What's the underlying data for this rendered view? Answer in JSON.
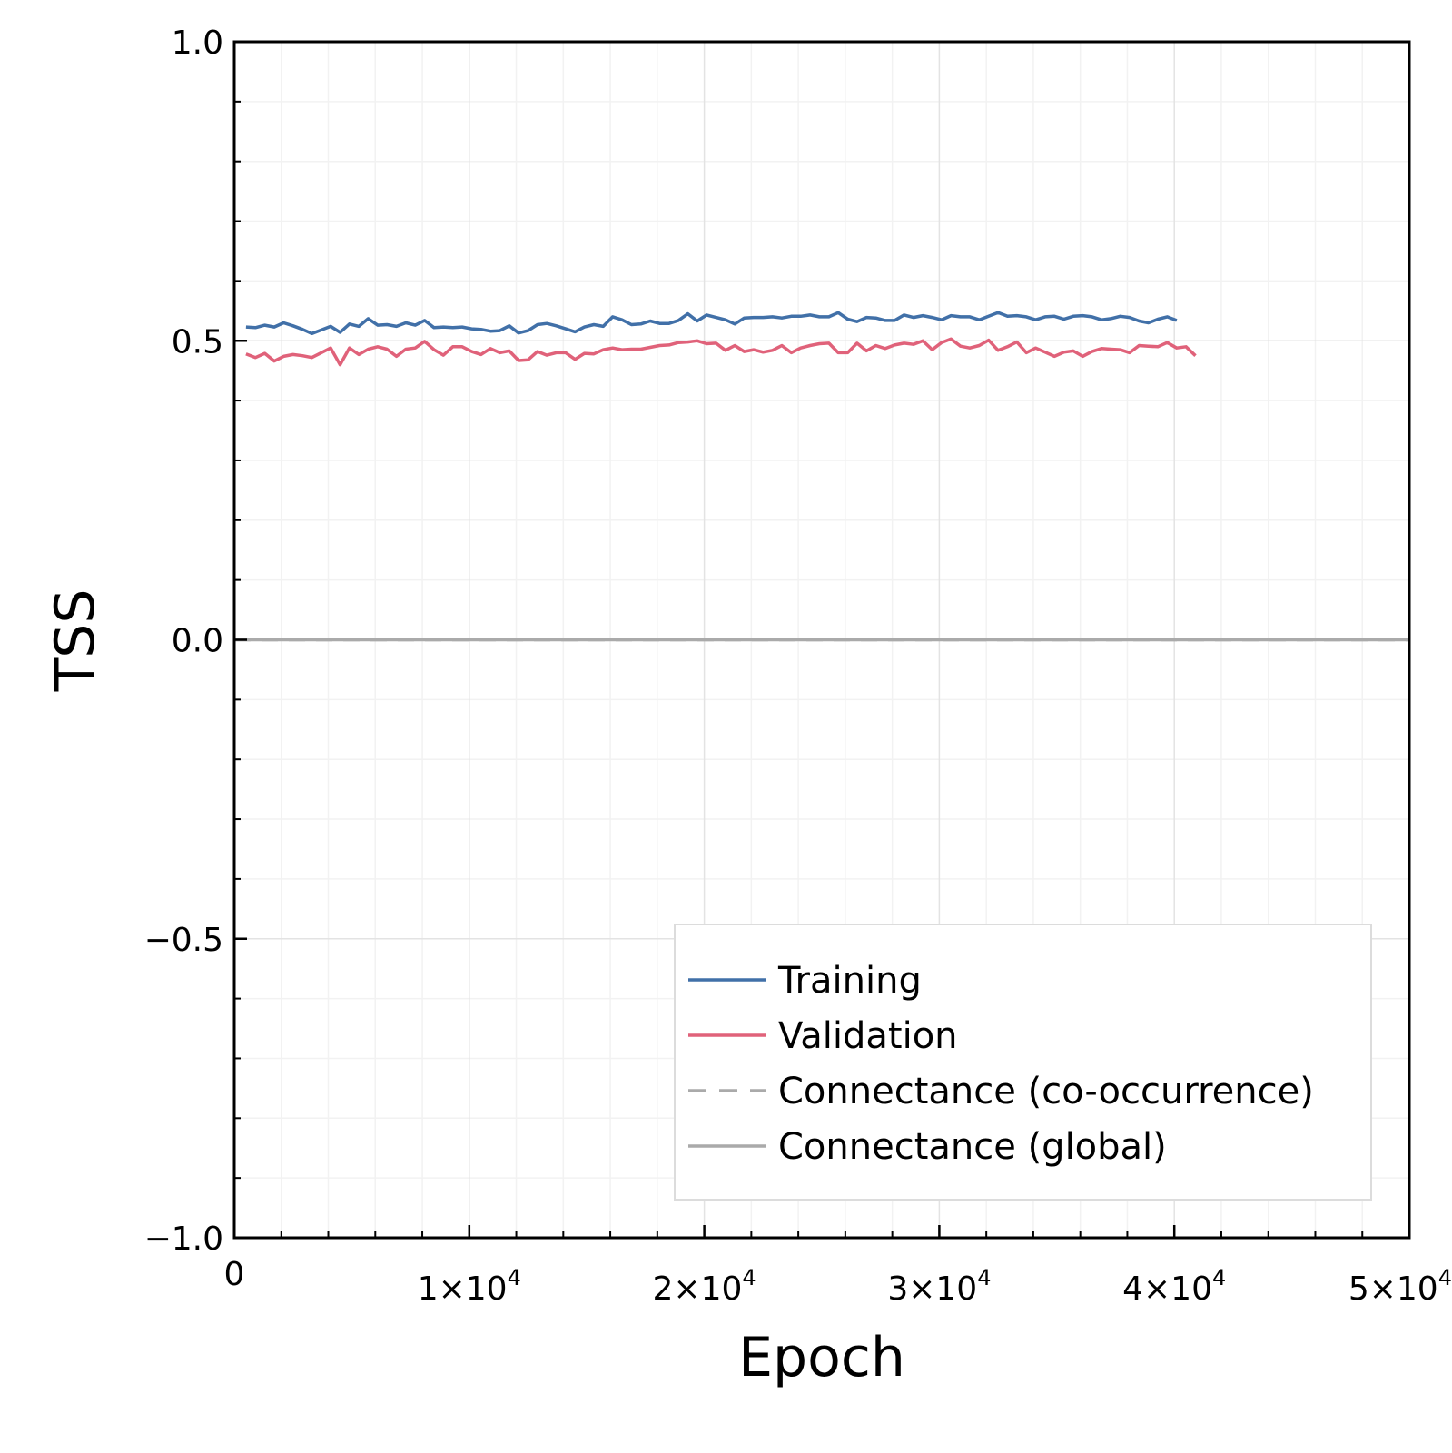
{
  "chart_data": {
    "type": "line",
    "xlabel": "Epoch",
    "ylabel": "TSS",
    "xlim": [
      0,
      50000
    ],
    "ylim": [
      -1.0,
      1.0
    ],
    "grid": true,
    "legend_position": "bottom-right",
    "y_ticks": [
      {
        "value": -1.0,
        "label": "−1.0"
      },
      {
        "value": -0.5,
        "label": "−0.5"
      },
      {
        "value": 0.0,
        "label": "0.0"
      },
      {
        "value": 0.5,
        "label": "0.5"
      },
      {
        "value": 1.0,
        "label": "1.0"
      }
    ],
    "x_ticks": [
      {
        "value": 0,
        "base": "0",
        "exp": ""
      },
      {
        "value": 10000,
        "base": "1×10",
        "exp": "4"
      },
      {
        "value": 20000,
        "base": "2×10",
        "exp": "4"
      },
      {
        "value": 30000,
        "base": "3×10",
        "exp": "4"
      },
      {
        "value": 40000,
        "base": "4×10",
        "exp": "4"
      },
      {
        "value": 50000,
        "base": "5×10",
        "exp": "4"
      }
    ],
    "series": [
      {
        "name": "Training",
        "color": "#4170a8",
        "dash": "solid",
        "x_start": 500,
        "x_step": 400,
        "values": [
          0.523,
          0.522,
          0.526,
          0.523,
          0.53,
          0.525,
          0.519,
          0.512,
          0.518,
          0.524,
          0.514,
          0.528,
          0.524,
          0.537,
          0.526,
          0.527,
          0.524,
          0.53,
          0.526,
          0.534,
          0.522,
          0.523,
          0.522,
          0.523,
          0.52,
          0.519,
          0.516,
          0.517,
          0.525,
          0.513,
          0.517,
          0.527,
          0.529,
          0.525,
          0.52,
          0.515,
          0.523,
          0.527,
          0.524,
          0.54,
          0.535,
          0.527,
          0.528,
          0.533,
          0.529,
          0.529,
          0.534,
          0.545,
          0.533,
          0.543,
          0.539,
          0.535,
          0.528,
          0.538,
          0.539,
          0.539,
          0.54,
          0.538,
          0.541,
          0.541,
          0.543,
          0.54,
          0.54,
          0.547,
          0.536,
          0.532,
          0.539,
          0.538,
          0.534,
          0.534,
          0.543,
          0.539,
          0.542,
          0.539,
          0.535,
          0.542,
          0.54,
          0.54,
          0.535,
          0.541,
          0.547,
          0.541,
          0.542,
          0.54,
          0.535,
          0.54,
          0.541,
          0.536,
          0.541,
          0.542,
          0.54,
          0.535,
          0.537,
          0.541,
          0.539,
          0.533,
          0.53,
          0.536,
          0.54,
          0.534
        ]
      },
      {
        "name": "Validation",
        "color": "#e0627a",
        "dash": "solid",
        "x_start": 500,
        "x_step": 400,
        "values": [
          0.478,
          0.472,
          0.479,
          0.466,
          0.474,
          0.477,
          0.475,
          0.472,
          0.48,
          0.488,
          0.46,
          0.488,
          0.477,
          0.486,
          0.49,
          0.486,
          0.474,
          0.486,
          0.488,
          0.499,
          0.485,
          0.476,
          0.49,
          0.49,
          0.482,
          0.477,
          0.487,
          0.48,
          0.483,
          0.467,
          0.468,
          0.482,
          0.476,
          0.48,
          0.48,
          0.469,
          0.479,
          0.478,
          0.485,
          0.488,
          0.485,
          0.486,
          0.486,
          0.489,
          0.492,
          0.493,
          0.497,
          0.498,
          0.5,
          0.495,
          0.496,
          0.484,
          0.492,
          0.482,
          0.485,
          0.481,
          0.484,
          0.492,
          0.48,
          0.488,
          0.492,
          0.495,
          0.496,
          0.48,
          0.48,
          0.496,
          0.483,
          0.492,
          0.487,
          0.493,
          0.496,
          0.494,
          0.5,
          0.485,
          0.497,
          0.503,
          0.491,
          0.488,
          0.492,
          0.501,
          0.484,
          0.49,
          0.498,
          0.48,
          0.488,
          0.481,
          0.474,
          0.481,
          0.483,
          0.474,
          0.482,
          0.487,
          0.486,
          0.485,
          0.48,
          0.492,
          0.491,
          0.49,
          0.497,
          0.488,
          0.49,
          0.475
        ]
      },
      {
        "name": "Connectance (co-occurrence)",
        "color": "#aaaaaa",
        "dash": "dashed",
        "x": [
          0,
          50000
        ],
        "values": [
          0.0,
          0.0
        ]
      },
      {
        "name": "Connectance (global)",
        "color": "#aaaaaa",
        "dash": "solid",
        "x": [
          0,
          50000
        ],
        "values": [
          0.0,
          0.0
        ]
      }
    ]
  }
}
